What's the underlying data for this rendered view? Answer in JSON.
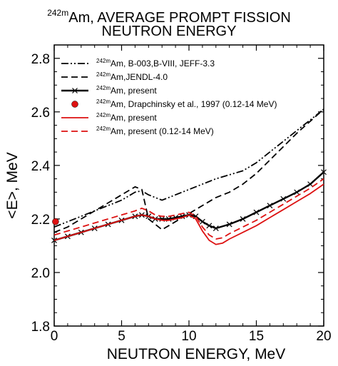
{
  "chart_data": {
    "type": "line",
    "title_line_1": {
      "sup": "242m",
      "text": "Am, AVERAGE PROMPT FISSION"
    },
    "title_line_2": "NEUTRON ENERGY",
    "xlabel": "NEUTRON ENERGY, MeV",
    "ylabel": "<E>,  MeV",
    "xlim": [
      0,
      20
    ],
    "ylim": [
      1.8,
      2.85
    ],
    "xticks": [
      "0",
      "5",
      "10",
      "15",
      "20"
    ],
    "yticks": [
      "1.8",
      "2.0",
      "2.2",
      "2.4",
      "2.6",
      "2.8"
    ],
    "series": [
      {
        "legend_sup": "242m",
        "name": "Am, B-003,B-VIII, JEFF-3.3",
        "color": "#000000",
        "style": "dashdotdot",
        "x": [
          0,
          1,
          2,
          3,
          4,
          5,
          6,
          6.5,
          7,
          8,
          9,
          10,
          11,
          12,
          13,
          14,
          15,
          16,
          17,
          18,
          19,
          20
        ],
        "y": [
          2.17,
          2.19,
          2.21,
          2.23,
          2.25,
          2.27,
          2.3,
          2.305,
          2.29,
          2.27,
          2.29,
          2.31,
          2.33,
          2.35,
          2.365,
          2.38,
          2.41,
          2.45,
          2.49,
          2.53,
          2.57,
          2.61
        ]
      },
      {
        "legend_sup": "242m",
        "name": "Am,JENDL-4.0",
        "color": "#000000",
        "style": "dashed",
        "x": [
          0,
          1,
          2,
          3,
          4,
          5,
          6,
          6.5,
          7,
          8,
          9,
          10,
          11,
          12,
          13,
          14,
          15,
          16,
          17,
          18,
          19,
          20
        ],
        "y": [
          2.15,
          2.17,
          2.2,
          2.23,
          2.26,
          2.29,
          2.32,
          2.31,
          2.2,
          2.16,
          2.19,
          2.22,
          2.25,
          2.28,
          2.3,
          2.33,
          2.37,
          2.42,
          2.47,
          2.52,
          2.565,
          2.61
        ]
      },
      {
        "legend_sup": "242m",
        "name": "Am, present",
        "color": "#000000",
        "style": "solid-x",
        "x": [
          0,
          1,
          2,
          3,
          4,
          5,
          6,
          6.5,
          7,
          7.5,
          8,
          8.5,
          9,
          9.5,
          10,
          10.5,
          11,
          11.5,
          12,
          13,
          14,
          15,
          16,
          17,
          18,
          19,
          20
        ],
        "y": [
          2.12,
          2.135,
          2.15,
          2.165,
          2.18,
          2.195,
          2.21,
          2.215,
          2.21,
          2.2,
          2.2,
          2.2,
          2.205,
          2.21,
          2.215,
          2.21,
          2.19,
          2.175,
          2.165,
          2.18,
          2.2,
          2.225,
          2.25,
          2.275,
          2.3,
          2.33,
          2.375
        ]
      },
      {
        "legend_sup": "242m",
        "name": "Am, Drapchinsky et al., 1997 (0.12-14 MeV)",
        "color": "#dd1111",
        "style": "point",
        "x": [
          0.1
        ],
        "y": [
          2.19
        ]
      },
      {
        "legend_sup": "242m",
        "name": "Am, present",
        "color": "#dd1111",
        "style": "solid",
        "x": [
          0,
          1,
          2,
          3,
          4,
          5,
          6,
          6.5,
          7,
          7.5,
          8,
          8.5,
          9,
          9.5,
          10,
          10.5,
          11,
          11.5,
          12,
          12.5,
          13,
          14,
          15,
          16,
          17,
          18,
          19,
          20
        ],
        "y": [
          2.12,
          2.135,
          2.15,
          2.165,
          2.18,
          2.195,
          2.21,
          2.215,
          2.21,
          2.2,
          2.195,
          2.195,
          2.2,
          2.205,
          2.215,
          2.2,
          2.155,
          2.12,
          2.105,
          2.11,
          2.125,
          2.15,
          2.175,
          2.205,
          2.235,
          2.265,
          2.295,
          2.33
        ]
      },
      {
        "legend_sup": "242m",
        "name": "Am, present (0.12-14 MeV)",
        "color": "#dd1111",
        "style": "dashed",
        "x": [
          0,
          1,
          2,
          3,
          4,
          5,
          6,
          6.5,
          7,
          7.5,
          8,
          8.5,
          9,
          9.5,
          10,
          10.5,
          11,
          11.5,
          12,
          12.5,
          13,
          14,
          15,
          16,
          17,
          18,
          19,
          20
        ],
        "y": [
          2.14,
          2.155,
          2.17,
          2.185,
          2.2,
          2.215,
          2.23,
          2.24,
          2.23,
          2.215,
          2.21,
          2.21,
          2.215,
          2.22,
          2.225,
          2.21,
          2.17,
          2.14,
          2.125,
          2.13,
          2.145,
          2.17,
          2.195,
          2.225,
          2.255,
          2.285,
          2.315,
          2.35
        ]
      }
    ]
  }
}
